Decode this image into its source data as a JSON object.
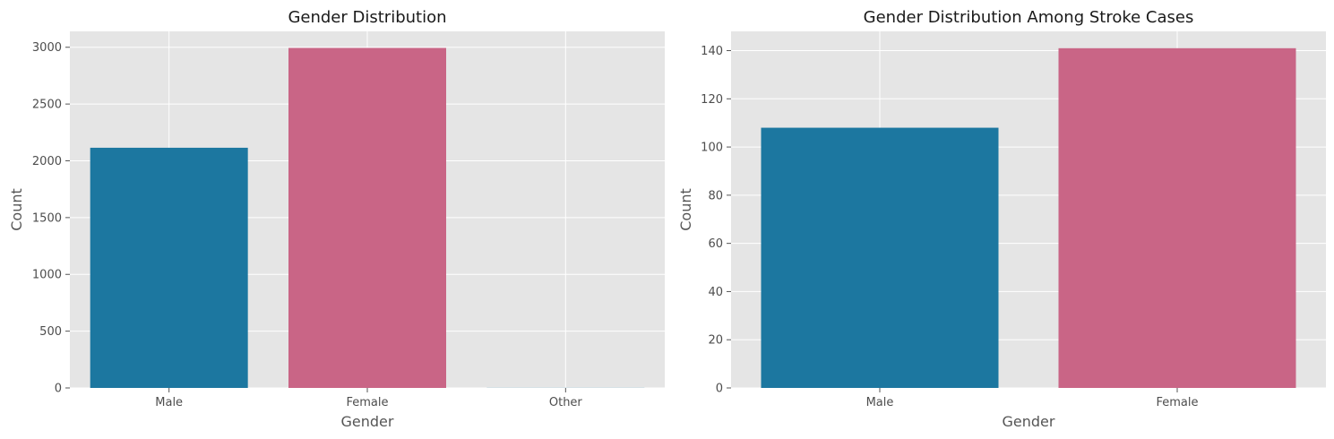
{
  "chart_data": [
    {
      "type": "bar",
      "title": "Gender Distribution",
      "xlabel": "Gender",
      "ylabel": "Count",
      "categories": [
        "Male",
        "Female",
        "Other"
      ],
      "values": [
        2115,
        2994,
        1
      ],
      "colors": [
        "#1c77a0",
        "#c96586",
        "#1c77a0"
      ],
      "ylim": [
        0,
        3140
      ],
      "yticks": [
        0,
        500,
        1000,
        1500,
        2000,
        2500,
        3000
      ],
      "ytick_labels": [
        "0",
        "500",
        "1000",
        "1500",
        "2000",
        "2500",
        "3000"
      ],
      "grid": true,
      "background": "#e5e5e5"
    },
    {
      "type": "bar",
      "title": "Gender Distribution Among Stroke Cases",
      "xlabel": "Gender",
      "ylabel": "Count",
      "categories": [
        "Male",
        "Female"
      ],
      "values": [
        108,
        141
      ],
      "colors": [
        "#1c77a0",
        "#c96586"
      ],
      "ylim": [
        0,
        148
      ],
      "yticks": [
        0,
        20,
        40,
        60,
        80,
        100,
        120,
        140
      ],
      "ytick_labels": [
        "0",
        "20",
        "40",
        "60",
        "80",
        "100",
        "120",
        "140"
      ],
      "grid": true,
      "background": "#e5e5e5"
    }
  ]
}
